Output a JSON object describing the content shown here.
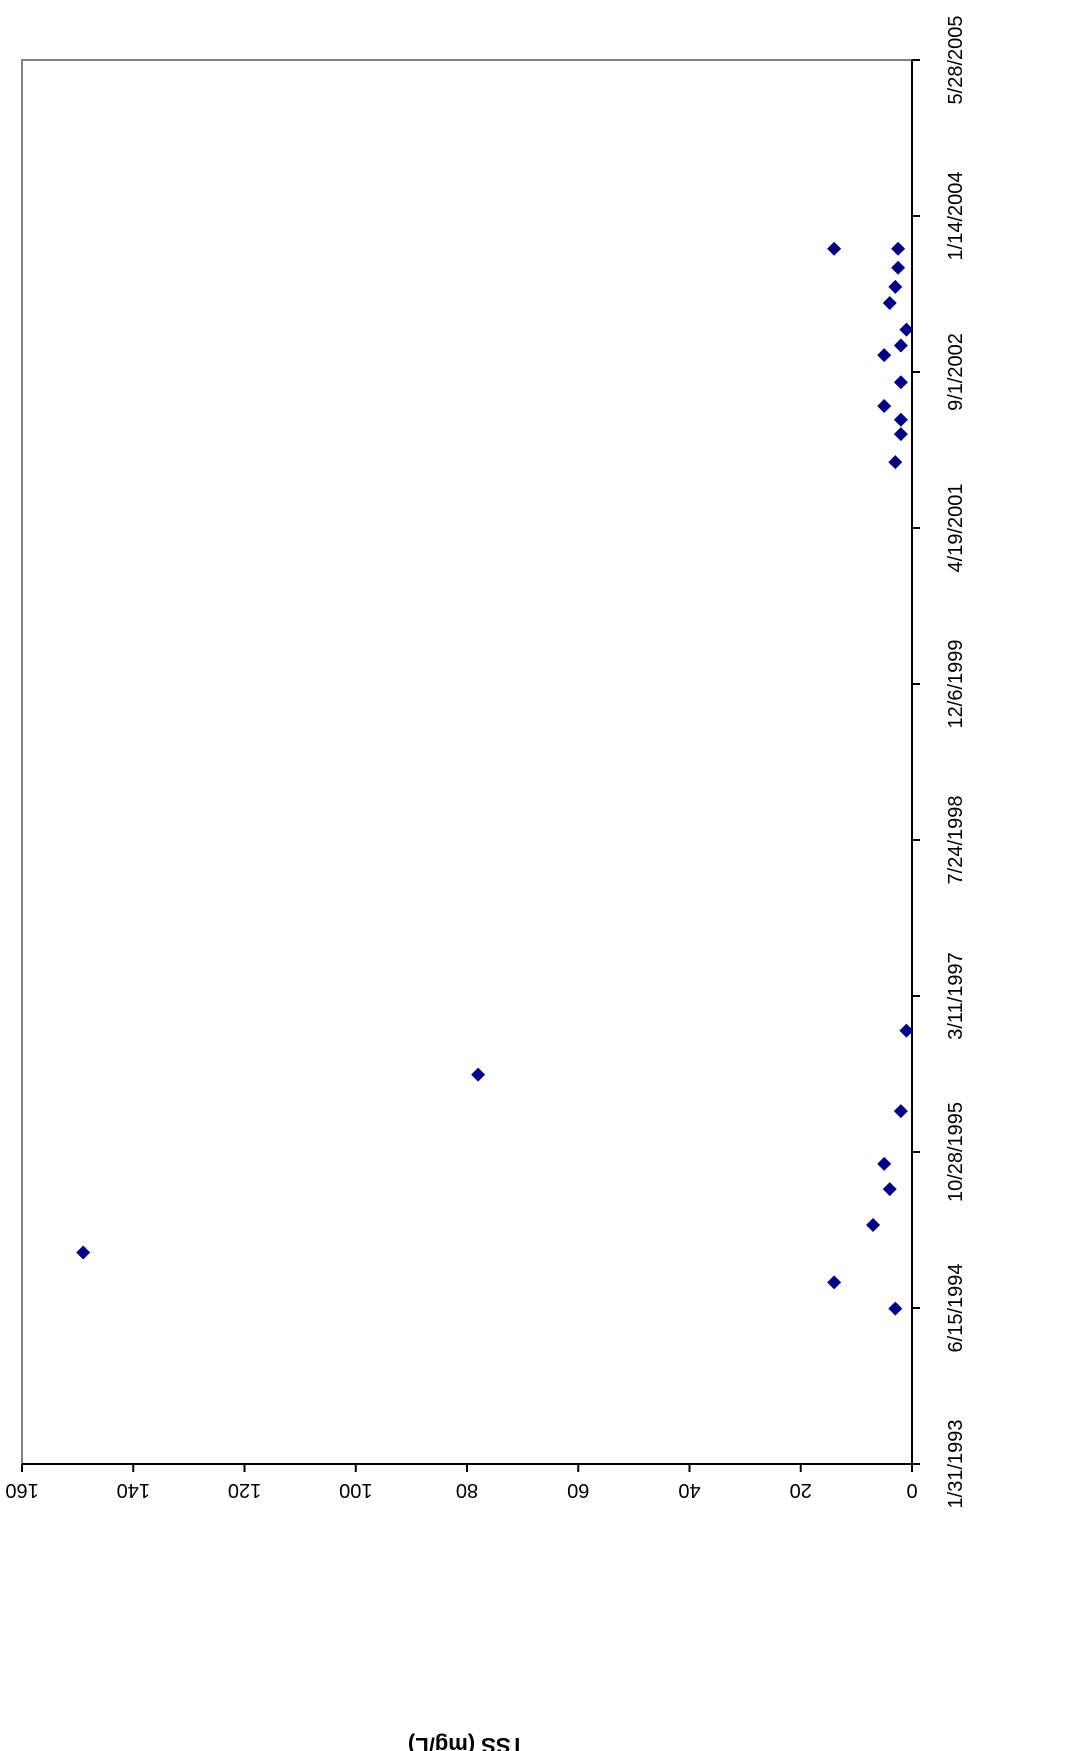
{
  "chart_data": {
    "type": "scatter",
    "orientation": "rotated-90-clockwise",
    "title": "",
    "xlabel": "",
    "ylabel": "TSS (mg/L)",
    "x_ticks": [
      "1/31/1993",
      "6/15/1994",
      "10/28/1995",
      "3/11/1997",
      "7/24/1998",
      "12/6/1999",
      "4/19/2001",
      "9/1/2002",
      "1/14/2004",
      "5/28/2005"
    ],
    "y_ticks": [
      0,
      20,
      40,
      60,
      80,
      100,
      120,
      140,
      160
    ],
    "xlim": [
      "1993-01-31",
      "2005-05-28"
    ],
    "ylim": [
      0,
      160
    ],
    "grid": false,
    "legend": "none",
    "marker": "diamond",
    "colors": {
      "marker": "#000080",
      "frame": "#808080"
    },
    "series": [
      {
        "points": [
          {
            "x": "1994-06-13",
            "y": 3
          },
          {
            "x": "1994-09-05",
            "y": 14
          },
          {
            "x": "1994-12-10",
            "y": 149
          },
          {
            "x": "1995-03-08",
            "y": 7
          },
          {
            "x": "1995-07-01",
            "y": 4
          },
          {
            "x": "1995-09-20",
            "y": 5
          },
          {
            "x": "1996-03-07",
            "y": 2
          },
          {
            "x": "1996-07-02",
            "y": 78
          },
          {
            "x": "1996-11-20",
            "y": 1
          },
          {
            "x": "2001-11-16",
            "y": 3
          },
          {
            "x": "2002-02-14",
            "y": 2
          },
          {
            "x": "2002-04-01",
            "y": 2
          },
          {
            "x": "2002-05-15",
            "y": 5
          },
          {
            "x": "2002-07-30",
            "y": 2
          },
          {
            "x": "2002-10-25",
            "y": 5
          },
          {
            "x": "2002-11-25",
            "y": 2
          },
          {
            "x": "2003-01-15",
            "y": 1
          },
          {
            "x": "2003-04-10",
            "y": 4
          },
          {
            "x": "2003-06-01",
            "y": 3
          },
          {
            "x": "2003-08-01",
            "y": 2.5
          },
          {
            "x": "2003-10-01",
            "y": 2.5
          },
          {
            "x": "2003-10-01",
            "y": 14
          }
        ]
      }
    ]
  }
}
